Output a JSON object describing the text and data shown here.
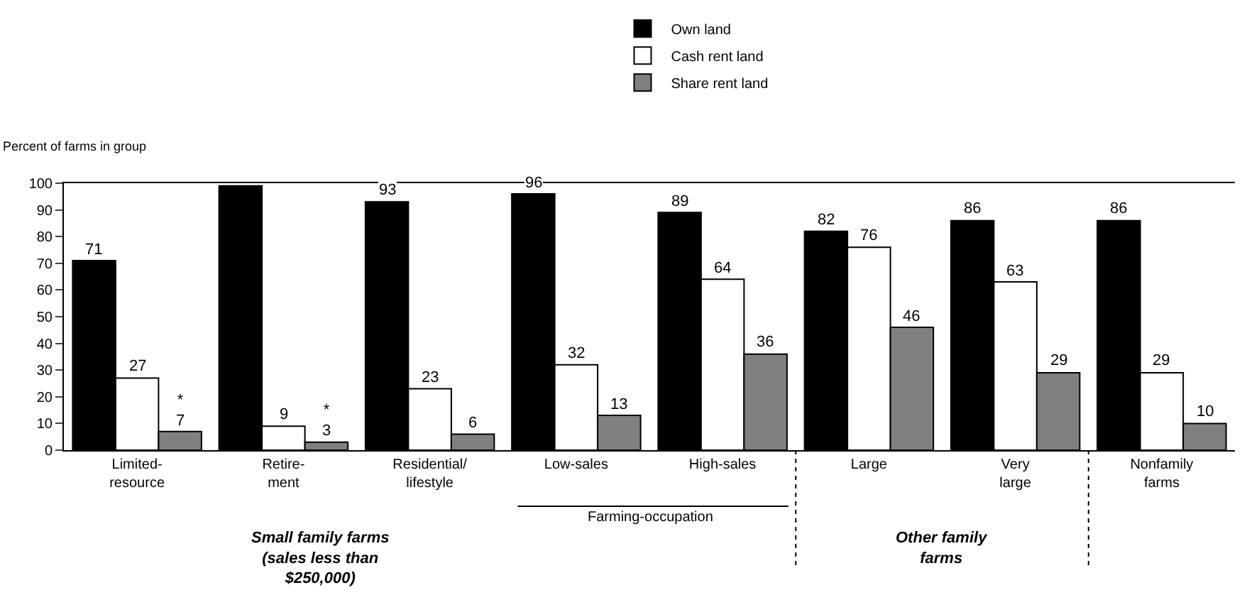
{
  "chart_data": {
    "type": "bar",
    "ylabel": "Percent of farms in group",
    "categories": [
      "Limited-\nresource",
      "Retire-\nment",
      "Residential/\nlifestyle",
      "Low-sales",
      "High-sales",
      "Large",
      "Very\nlarge",
      "Nonfamily\nfarms"
    ],
    "series": [
      {
        "name": "Own land",
        "color": "#000000",
        "values": [
          71,
          99,
          93,
          96,
          89,
          82,
          86,
          86
        ],
        "value_labels": [
          "71",
          null,
          "93",
          "96",
          "89",
          "82",
          "86",
          "86"
        ]
      },
      {
        "name": "Cash rent land",
        "color": "#ffffff",
        "values": [
          27,
          9,
          23,
          32,
          64,
          76,
          63,
          29
        ],
        "value_labels": [
          "27",
          "9",
          "23",
          "32",
          "64",
          "76",
          "63",
          "29"
        ]
      },
      {
        "name": "Share rent land",
        "color": "#808080",
        "values": [
          7,
          3,
          6,
          13,
          36,
          46,
          29,
          10
        ],
        "value_labels": [
          "*\n7",
          "*\n3",
          "6",
          "13",
          "36",
          "46",
          "29",
          "10"
        ]
      }
    ],
    "ylim": [
      0,
      100
    ],
    "yticks": [
      0,
      10,
      20,
      30,
      40,
      50,
      60,
      70,
      80,
      90,
      100
    ],
    "grid": false,
    "legend": "top",
    "annotations": [
      "Farming-occupation",
      "Small family farms\n(sales less than\n$250,000)",
      "Other family\nfarms"
    ]
  }
}
